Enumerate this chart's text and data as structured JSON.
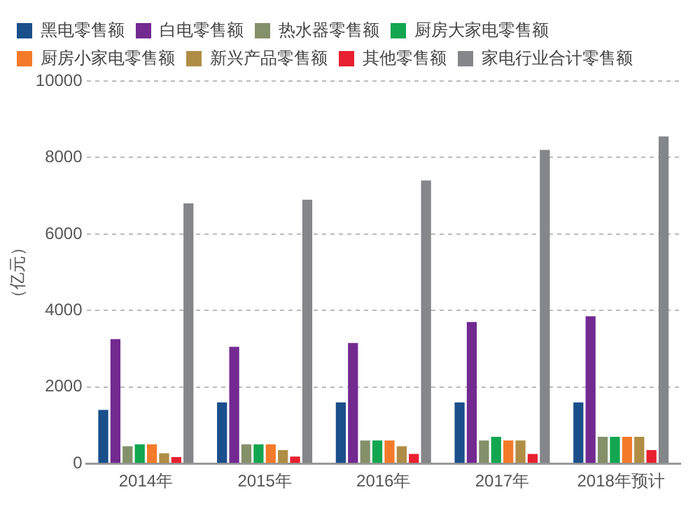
{
  "chart_data": {
    "type": "bar",
    "ylabel": "（亿元）",
    "categories": [
      "2014年",
      "2015年",
      "2016年",
      "2017年",
      "2018年预计"
    ],
    "series": [
      {
        "name": "黑电零售额",
        "color": "#1a4f8b",
        "values": [
          1400,
          1600,
          1600,
          1600,
          1600
        ]
      },
      {
        "name": "白电零售额",
        "color": "#722a91",
        "values": [
          3250,
          3050,
          3150,
          3700,
          3850
        ]
      },
      {
        "name": "热水器零售额",
        "color": "#84906a",
        "values": [
          450,
          500,
          600,
          600,
          700
        ]
      },
      {
        "name": "厨房大家电零售额",
        "color": "#12a650",
        "values": [
          500,
          500,
          600,
          700,
          700
        ]
      },
      {
        "name": "厨房小家电零售额",
        "color": "#f47a2a",
        "values": [
          500,
          500,
          600,
          600,
          700
        ]
      },
      {
        "name": "新兴产品零售额",
        "color": "#b08d45",
        "values": [
          270,
          350,
          450,
          600,
          700
        ]
      },
      {
        "name": "其他零售额",
        "color": "#e8202f",
        "values": [
          170,
          180,
          250,
          250,
          350
        ]
      },
      {
        "name": "家电行业合计零售额",
        "color": "#858689",
        "values": [
          6800,
          6900,
          7400,
          8200,
          8550
        ]
      }
    ],
    "ylim": [
      0,
      10000
    ],
    "yticks": [
      0,
      2000,
      4000,
      6000,
      8000,
      10000
    ],
    "grid": "y",
    "legend": "top left"
  }
}
